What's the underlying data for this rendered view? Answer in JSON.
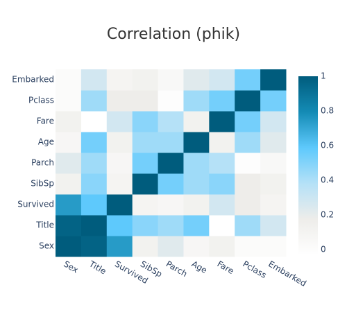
{
  "chart_data": {
    "type": "heatmap",
    "title": "Correlation (phik)",
    "x": [
      "Sex",
      "Title",
      "Survived",
      "SibSp",
      "Parch",
      "Age",
      "Fare",
      "Pclass",
      "Embarked"
    ],
    "y": [
      "Sex",
      "Title",
      "Survived",
      "SibSp",
      "Parch",
      "Age",
      "Fare",
      "Pclass",
      "Embarked"
    ],
    "z": [
      [
        1,
        0.97,
        0.75,
        0.15,
        0.25,
        0.1,
        0.15,
        0.05,
        0.05
      ],
      [
        0.97,
        1,
        0.6,
        0.5,
        0.45,
        0.55,
        0,
        0.45,
        0.3
      ],
      [
        0.75,
        0.6,
        1,
        0.12,
        0.1,
        0.15,
        0.3,
        0.2,
        0.12
      ],
      [
        0.15,
        0.5,
        0.12,
        1,
        0.55,
        0.45,
        0.5,
        0.2,
        0.15
      ],
      [
        0.25,
        0.45,
        0.1,
        0.55,
        1,
        0.45,
        0.4,
        0.02,
        0.08
      ],
      [
        0.1,
        0.55,
        0.15,
        0.45,
        0.45,
        1,
        0.15,
        0.45,
        0.25
      ],
      [
        0.15,
        0,
        0.3,
        0.5,
        0.4,
        0.15,
        1,
        0.55,
        0.3
      ],
      [
        0.05,
        0.45,
        0.2,
        0.2,
        0.02,
        0.45,
        0.55,
        1,
        0.55
      ],
      [
        0.05,
        0.3,
        0.12,
        0.15,
        0.08,
        0.25,
        0.3,
        0.55,
        1
      ]
    ],
    "zlim": [
      0,
      1
    ],
    "colorbar_ticks": [
      0,
      0.2,
      0.4,
      0.6,
      0.8,
      1
    ],
    "colorscale": [
      [
        0,
        "#ffffff"
      ],
      [
        0.2,
        "#eeedea"
      ],
      [
        0.4,
        "#b5e1f7"
      ],
      [
        0.6,
        "#5ec9fc"
      ],
      [
        0.8,
        "#148bb5"
      ],
      [
        1,
        "#005c7d"
      ]
    ]
  }
}
